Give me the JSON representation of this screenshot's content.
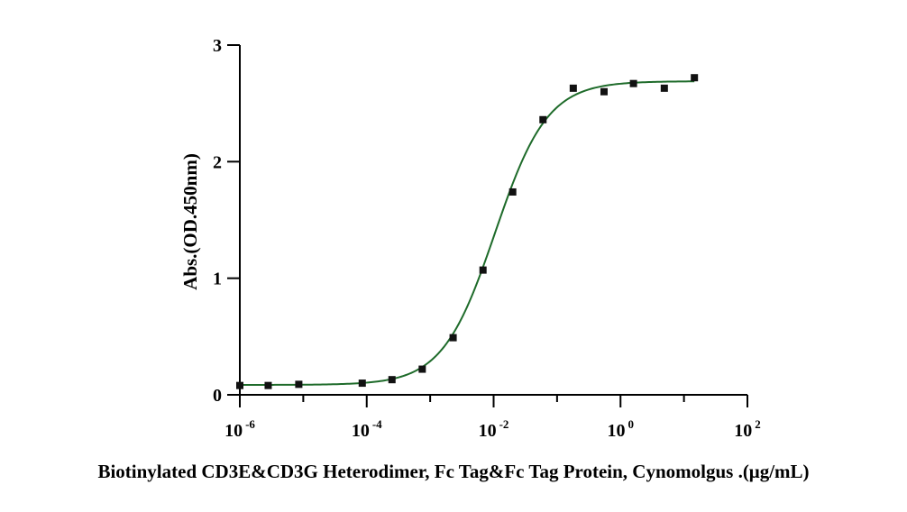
{
  "chart_data": {
    "type": "scatter",
    "xlabel": "Biotinylated CD3E&CD3G Heterodimer, Fc Tag&Fc Tag Protein, Cynomolgus .(μg/mL)",
    "ylabel": "Abs.(OD.450nm)",
    "x_scale": "log",
    "xlim": [
      1e-06,
      100
    ],
    "ylim": [
      0,
      3
    ],
    "x_ticks": [
      {
        "value": 1e-06,
        "base": "10",
        "exp": "-6"
      },
      {
        "value": 0.0001,
        "base": "10",
        "exp": "-4"
      },
      {
        "value": 0.01,
        "base": "10",
        "exp": "-2"
      },
      {
        "value": 1,
        "base": "10",
        "exp": "0"
      },
      {
        "value": 100,
        "base": "10",
        "exp": "2"
      }
    ],
    "y_ticks": [
      0,
      1,
      2,
      3
    ],
    "grid": false,
    "series": [
      {
        "x": [
          1e-06,
          2.8e-06,
          8.5e-06,
          8.5e-05,
          0.00025,
          0.00075,
          0.0023,
          0.0068,
          0.02,
          0.06,
          0.18,
          0.55,
          1.6,
          4.9,
          14.6
        ],
        "y": [
          0.08,
          0.08,
          0.09,
          0.1,
          0.13,
          0.22,
          0.49,
          1.07,
          1.74,
          2.36,
          2.63,
          2.6,
          2.67,
          2.63,
          2.72
        ],
        "marker": "square",
        "color": "#111111"
      }
    ],
    "fit_curve": {
      "model": "4PL",
      "bottom": 0.085,
      "top": 2.69,
      "ec50": 0.0105,
      "hill": 1.05,
      "color": "#1e6b2a"
    }
  }
}
